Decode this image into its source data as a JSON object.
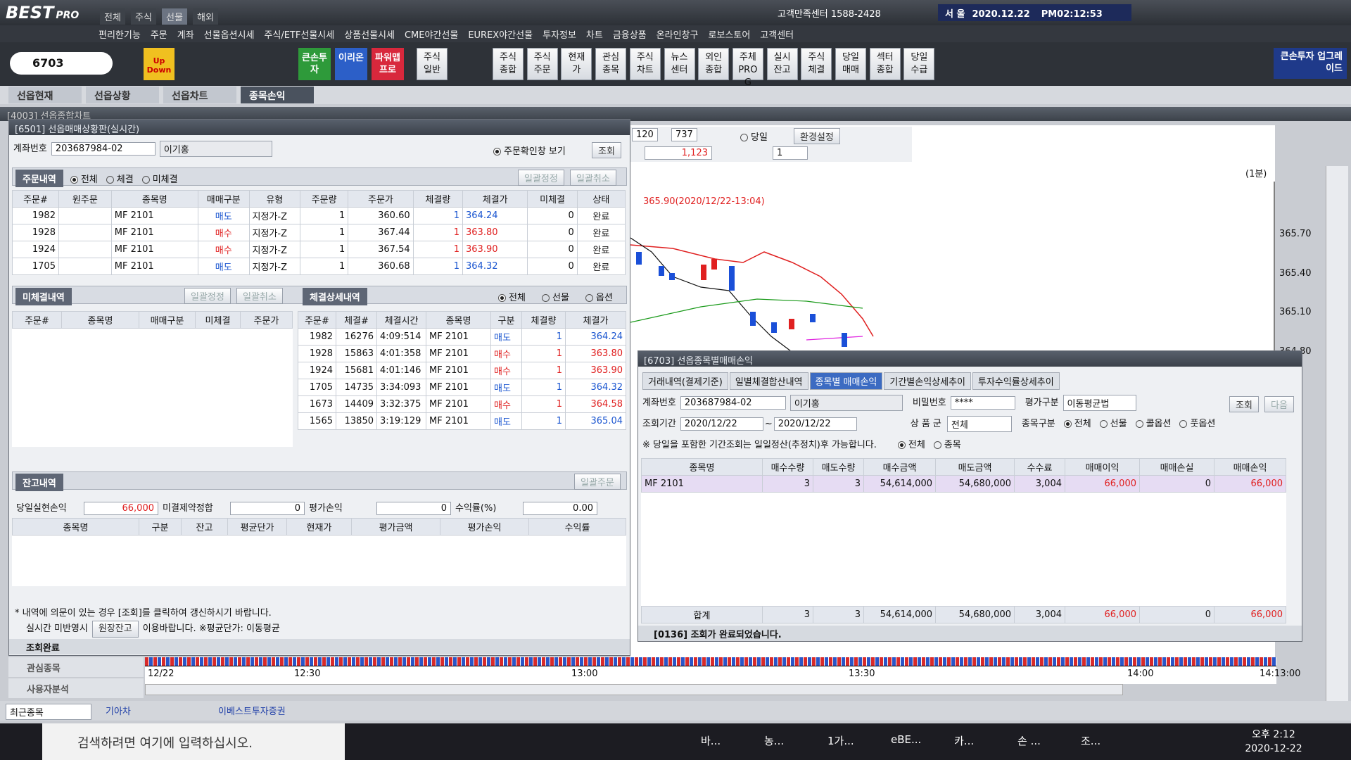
{
  "app": {
    "logo": "BEST",
    "logo_sub": "PRO",
    "top_tabs": [
      "전체",
      "주식",
      "선물",
      "해외"
    ],
    "support": "고객만족센터 1588-2428",
    "city": "서 울",
    "date": "2020.12.22",
    "time": "PM02:12:53",
    "menu": [
      "편리한기능",
      "주문",
      "계좌",
      "선물옵션시세",
      "주식/ETF선물시세",
      "상품선물시세",
      "CME야간선물",
      "EUREX야간선물",
      "투자정보",
      "차트",
      "금융상품",
      "온라인창구",
      "로보스토어",
      "고객센터"
    ],
    "search": "6703",
    "updown": "Up Down",
    "toolbar_color": [
      "큰손투자",
      "이리온",
      "파워맵프로"
    ],
    "toolbar": [
      "주식일반",
      "주식종합",
      "주식주문",
      "현재가",
      "관심종목",
      "주식차트",
      "뉴스센터",
      "외인종합",
      "주체PROG",
      "실시잔고",
      "주식체결",
      "당일매매",
      "섹터종합",
      "당일수급"
    ],
    "upgrade": "큰손투자 업그레이드",
    "doc_tabs": [
      "선옵현재",
      "선옵상황",
      "선옵차트",
      "종목손익"
    ]
  },
  "chart_window": {
    "title": "[4003] 선옵종합차트",
    "count": "120",
    "total": "737",
    "today": "당일",
    "settings": "환경설정",
    "volume": "1,123",
    "unit": "1",
    "period": "(1분)",
    "annotation": "365.90(2020/12/22-13:04)",
    "y_labels": [
      "365.70",
      "365.40",
      "365.10",
      "364.80"
    ],
    "x_labels": [
      "12/22",
      "12:30",
      "13:00",
      "13:30",
      "14:00",
      "14:13:00"
    ],
    "side": [
      "관심종목",
      "사용자분석"
    ]
  },
  "left_window": {
    "title": "[6501] 선옵매매상황판(실시간)",
    "account_label": "계좌번호",
    "account": "203687984-02",
    "name": "이기홍",
    "confirm": "주문확인창 보기",
    "query": "조회",
    "orders": {
      "title": "주문내역",
      "radios": [
        "전체",
        "체결",
        "미체결"
      ],
      "buttons": [
        "일괄정정",
        "일괄취소"
      ],
      "headers": [
        "주문#",
        "원주문",
        "종목명",
        "매매구분",
        "유형",
        "주문량",
        "주문가",
        "체결량",
        "체결가",
        "미체결",
        "상태"
      ],
      "rows": [
        [
          "1982",
          "",
          "MF 2101",
          "매도",
          "지정가-Z",
          "1",
          "360.60",
          "1",
          "364.24",
          "0",
          "완료"
        ],
        [
          "1928",
          "",
          "MF 2101",
          "매수",
          "지정가-Z",
          "1",
          "367.44",
          "1",
          "363.80",
          "0",
          "완료"
        ],
        [
          "1924",
          "",
          "MF 2101",
          "매수",
          "지정가-Z",
          "1",
          "367.54",
          "1",
          "363.90",
          "0",
          "완료"
        ],
        [
          "1705",
          "",
          "MF 2101",
          "매도",
          "지정가-Z",
          "1",
          "360.68",
          "1",
          "364.32",
          "0",
          "완료"
        ]
      ]
    },
    "unfilled": {
      "title": "미체결내역",
      "buttons": [
        "일괄정정",
        "일괄취소"
      ],
      "headers": [
        "주문#",
        "종목명",
        "매매구분",
        "미체결",
        "주문가"
      ]
    },
    "fills": {
      "title": "체결상세내역",
      "radios": [
        "전체",
        "선물",
        "옵션"
      ],
      "headers": [
        "주문#",
        "체결#",
        "체결시간",
        "종목명",
        "구분",
        "체결량",
        "체결가"
      ],
      "rows": [
        [
          "1982",
          "16276",
          "4:09:514",
          "MF 2101",
          "매도",
          "1",
          "364.24"
        ],
        [
          "1928",
          "15863",
          "4:01:358",
          "MF 2101",
          "매수",
          "1",
          "363.80"
        ],
        [
          "1924",
          "15681",
          "4:01:146",
          "MF 2101",
          "매수",
          "1",
          "363.90"
        ],
        [
          "1705",
          "14735",
          "3:34:093",
          "MF 2101",
          "매도",
          "1",
          "364.32"
        ],
        [
          "1673",
          "14409",
          "3:32:375",
          "MF 2101",
          "매수",
          "1",
          "364.58"
        ],
        [
          "1565",
          "13850",
          "3:19:129",
          "MF 2101",
          "매도",
          "1",
          "365.04"
        ]
      ]
    },
    "balance": {
      "title": "잔고내역",
      "button": "일괄주문",
      "summary": [
        [
          "당일실현손익",
          "66,000"
        ],
        [
          "미결제약정합",
          "0"
        ],
        [
          "평가손익",
          "0"
        ],
        [
          "수익률(%)",
          "0.00"
        ]
      ],
      "headers": [
        "종목명",
        "구분",
        "잔고",
        "평균단가",
        "현재가",
        "평가금액",
        "평가손익",
        "수익률"
      ]
    },
    "notes": [
      "* 내역에 의문이 있는 경우 [조회]를 클릭하여 갱신하시기 바랍니다.",
      "실시간 미반영시",
      "원장잔고",
      "이용바랍니다. ※평균단가: 이동평균"
    ],
    "status": "조회완료"
  },
  "right_window": {
    "title": "[6703] 선옵종목별매매손익",
    "tabs": [
      "거래내역(결제기준)",
      "일별체결합산내역",
      "종목별 매매손익",
      "기간별손익상세추이",
      "투자수익률상세추이"
    ],
    "account_label": "계좌번호",
    "account": "203687984-02",
    "name": "이기홍",
    "pw_label": "비밀번호",
    "pw": "****",
    "eval_label": "평가구분",
    "eval": "이동평균법",
    "query": "조회",
    "next": "다음",
    "period_label": "조회기간",
    "from": "2020/12/22",
    "tilde": "~",
    "to": "2020/12/22",
    "group_label": "상 품 군",
    "group": "전체",
    "kind_label": "종목구분",
    "kind_radios": [
      "전체",
      "선물",
      "콜옵션",
      "풋옵션"
    ],
    "note": "※ 당일을 포함한 기간조회는 일일정산(추정치)후 가능합니다.",
    "scope_radios": [
      "전체",
      "종목"
    ],
    "headers": [
      "종목명",
      "매수수량",
      "매도수량",
      "매수금액",
      "매도금액",
      "수수료",
      "매매이익",
      "매매손실",
      "매매손익"
    ],
    "rows": [
      [
        "MF 2101",
        "3",
        "3",
        "54,614,000",
        "54,680,000",
        "3,004",
        "66,000",
        "0",
        "66,000"
      ]
    ],
    "total": [
      "합계",
      "3",
      "3",
      "54,614,000",
      "54,680,000",
      "3,004",
      "66,000",
      "0",
      "66,000"
    ],
    "status": "[0136] 조회가 완료되었습니다."
  },
  "bottom_bar": {
    "recent": "최근종목",
    "stock": "기아차",
    "broker": "이베스트투자증권"
  },
  "taskbar": {
    "search": "검색하려면 여기에 입력하십시오.",
    "apps": [
      "바...",
      "농...",
      "1가...",
      "eBE...",
      "카...",
      "손 ...",
      "조..."
    ],
    "time": "오후 2:12",
    "date": "2020-12-22"
  }
}
